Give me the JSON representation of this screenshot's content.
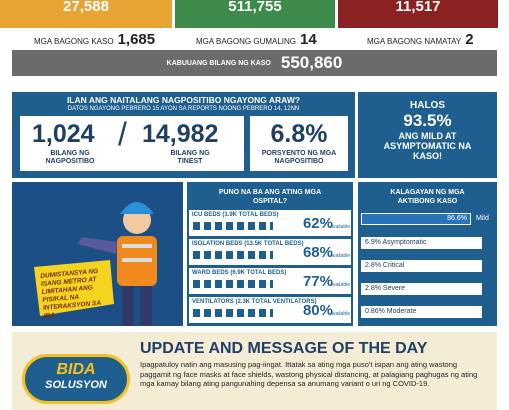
{
  "top_totals": [
    "27,588",
    "511,755",
    "11,517"
  ],
  "daily": [
    {
      "label": "MGA BAGONG KASO",
      "value": "1,685"
    },
    {
      "label": "MGA BAGONG GUMALING",
      "value": "14"
    },
    {
      "label": "MGA BAGONG NAMATAY",
      "value": "2"
    }
  ],
  "total": {
    "label": "KABUUANG BILANG NG KASO",
    "value": "550,860"
  },
  "positivity": {
    "title": "ILAN ANG NAITALANG NAGPOSITIBO NGAYONG ARAW?",
    "subtitle": "DATOS NGAYONG PEBRERO 15 AYON SA REPORTS NOONG PEBRERO 14, 12NN",
    "positive": {
      "value": "1,024",
      "label": "BILANG NG NAGPOSITIBO"
    },
    "separator": "/",
    "tested": {
      "value": "14,982",
      "label": "BILANG NG TINEST"
    },
    "rate": {
      "value": "6.8%",
      "label": "PORSYENTO NG MGA NAGPOSITIBO"
    }
  },
  "mild": {
    "top": "HALOS",
    "value": "93.5%",
    "text": "ANG MILD AT ASYMPTOMATIC NA KASO!"
  },
  "illustration": {
    "text": "DUMISTANSYA NG ISANG METRO AT LIMITAHAN ANG PISIKAL NA INTERAKSYON SA IBA"
  },
  "hospital": {
    "title": "PUNO NA BA ANG ATING MGA OSPITAL?",
    "rows": [
      {
        "label": "ICU BEDS (1.9K TOTAL BEDS)",
        "value": "62%",
        "note": "Available"
      },
      {
        "label": "ISOLATION BEDS (13.5K TOTAL BEDS)",
        "value": "68%",
        "note": "Available"
      },
      {
        "label": "WARD BEDS (6.9K TOTAL BEDS)",
        "value": "77%",
        "note": "Available"
      },
      {
        "label": "VENTILATORS (2.3K TOTAL VENTILATORS)",
        "value": "80%",
        "note": "Available"
      }
    ]
  },
  "active": {
    "title": "KALAGAYAN NG MGA AKTIBONG KASO",
    "mild": {
      "value": "86.6%",
      "label": "Mild"
    },
    "rows": [
      "6.9% Asymptomatic",
      "2.8% Critical",
      "2.8% Severe",
      "0.86% Moderate"
    ]
  },
  "message": {
    "title": "UPDATE AND MESSAGE OF THE DAY",
    "logo": [
      "BIDA",
      "SOLUSYON"
    ],
    "body": "Ipagpatuloy natin ang masusing pag-iingat. Ittatak sa ating mga puso't isipan ang ating wastong paggamit ng face masks at face shields, wastong physical distancing, at palagiang paghugas ng ating mga kamay bilang ating pangunahing depensa sa anumang variant o uri ng COVID-19."
  }
}
